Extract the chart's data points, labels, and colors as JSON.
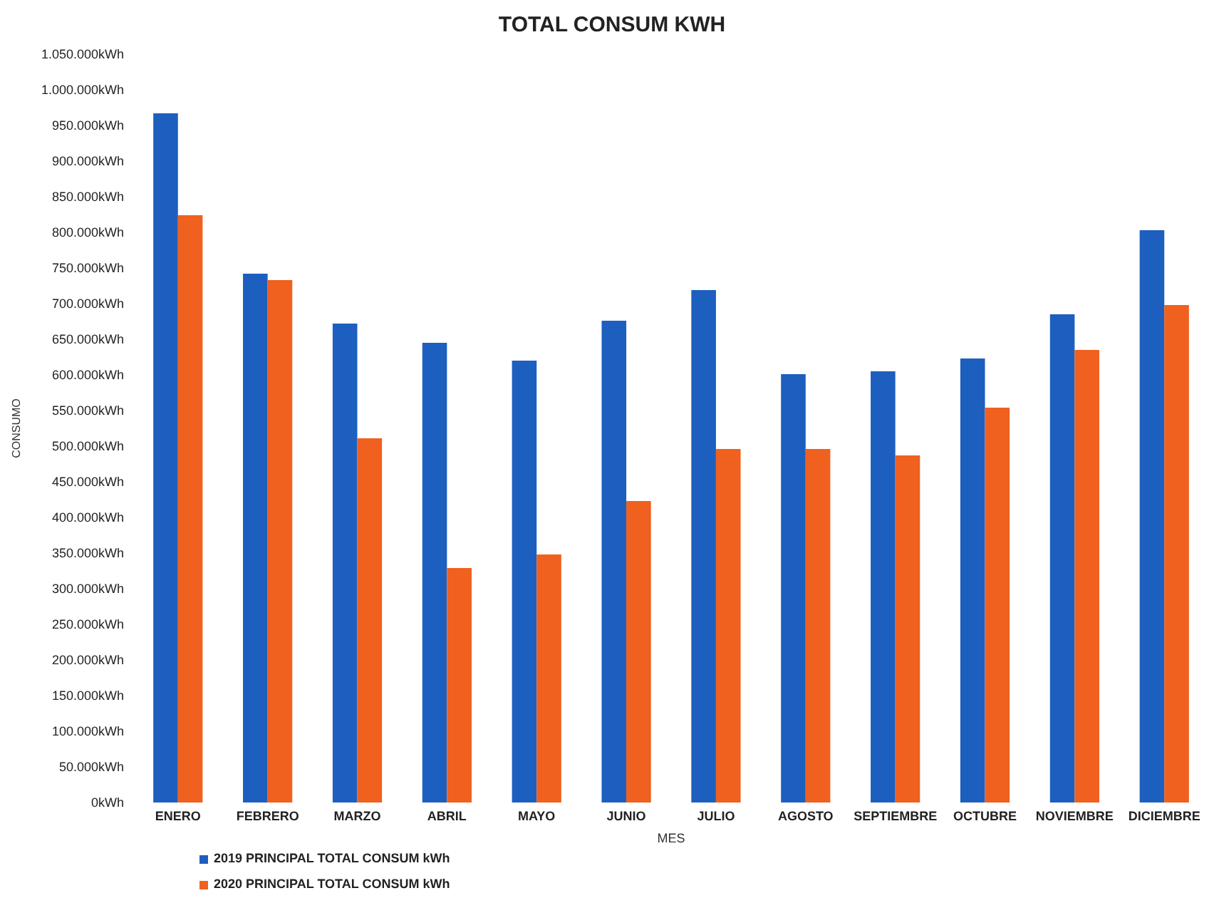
{
  "chart_data": {
    "type": "bar",
    "title": "TOTAL CONSUM KWH",
    "xlabel": "MES",
    "ylabel": "CONSUMO",
    "categories": [
      "ENERO",
      "FEBRERO",
      "MARZO",
      "ABRIL",
      "MAYO",
      "JUNIO",
      "JULIO",
      "AGOSTO",
      "SEPTIEMBRE",
      "OCTUBRE",
      "NOVIEMBRE",
      "DICIEMBRE"
    ],
    "series": [
      {
        "name": "2019 PRINCIPAL TOTAL CONSUM kWh",
        "color": "#1d5fbf",
        "values": [
          967000,
          742000,
          672000,
          645000,
          620000,
          676000,
          719000,
          601000,
          605000,
          623000,
          685000,
          803000
        ]
      },
      {
        "name": "2020 PRINCIPAL TOTAL CONSUM kWh",
        "color": "#f0601e",
        "values": [
          824000,
          733000,
          511000,
          329000,
          348000,
          423000,
          496000,
          496000,
          487000,
          554000,
          635000,
          698000
        ]
      }
    ],
    "ylim": [
      0,
      1050000
    ],
    "yticks": [
      {
        "value": 0,
        "label": "0kWh"
      },
      {
        "value": 50000,
        "label": "50.000kWh"
      },
      {
        "value": 100000,
        "label": "100.000kWh"
      },
      {
        "value": 150000,
        "label": "150.000kWh"
      },
      {
        "value": 200000,
        "label": "200.000kWh"
      },
      {
        "value": 250000,
        "label": "250.000kWh"
      },
      {
        "value": 300000,
        "label": "300.000kWh"
      },
      {
        "value": 350000,
        "label": "350.000kWh"
      },
      {
        "value": 400000,
        "label": "400.000kWh"
      },
      {
        "value": 450000,
        "label": "450.000kWh"
      },
      {
        "value": 500000,
        "label": "500.000kWh"
      },
      {
        "value": 550000,
        "label": "550.000kWh"
      },
      {
        "value": 600000,
        "label": "600.000kWh"
      },
      {
        "value": 650000,
        "label": "650.000kWh"
      },
      {
        "value": 700000,
        "label": "700.000kWh"
      },
      {
        "value": 750000,
        "label": "750.000kWh"
      },
      {
        "value": 800000,
        "label": "800.000kWh"
      },
      {
        "value": 850000,
        "label": "850.000kWh"
      },
      {
        "value": 900000,
        "label": "900.000kWh"
      },
      {
        "value": 950000,
        "label": "950.000kWh"
      },
      {
        "value": 1000000,
        "label": "1.000.000kWh"
      },
      {
        "value": 1050000,
        "label": "1.050.000kWh"
      }
    ],
    "grid": false,
    "legend": "bottom left"
  }
}
